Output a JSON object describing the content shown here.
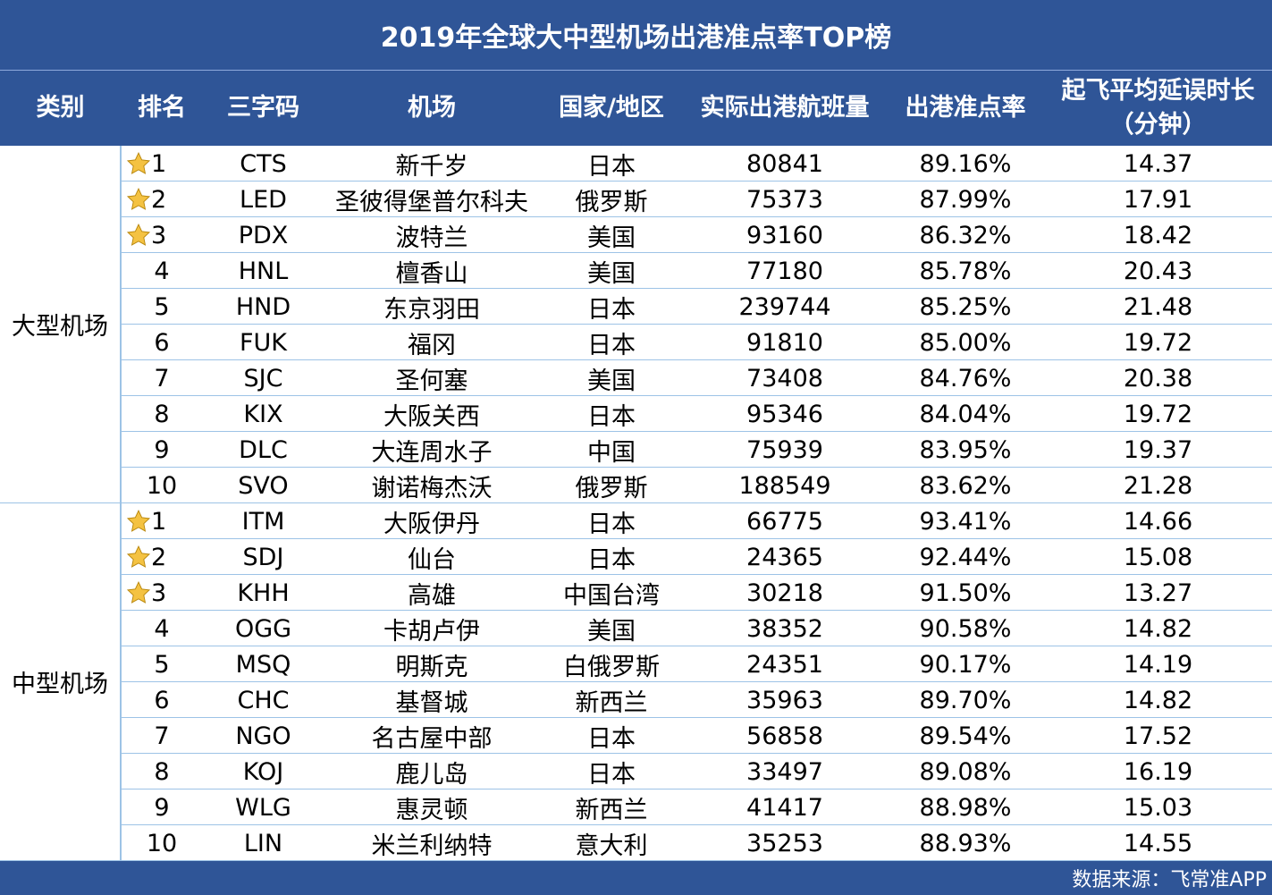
{
  "title": "2019年全球大中型机场出港准点率TOP榜",
  "headers": {
    "category": "类别",
    "rank": "排名",
    "code": "三字码",
    "airport": "机场",
    "region": "国家/地区",
    "flights": "实际出港航班量",
    "ontime": "出港准点率",
    "delay_line1": "起飞平均延误时长",
    "delay_line2": "（分钟）"
  },
  "groups": [
    {
      "category": "大型机场",
      "rows": [
        {
          "rank": "1",
          "star": true,
          "code": "CTS",
          "airport": "新千岁",
          "region": "日本",
          "flights": "80841",
          "ontime": "89.16%",
          "delay": "14.37"
        },
        {
          "rank": "2",
          "star": true,
          "code": "LED",
          "airport": "圣彼得堡普尔科夫",
          "region": "俄罗斯",
          "flights": "75373",
          "ontime": "87.99%",
          "delay": "17.91"
        },
        {
          "rank": "3",
          "star": true,
          "code": "PDX",
          "airport": "波特兰",
          "region": "美国",
          "flights": "93160",
          "ontime": "86.32%",
          "delay": "18.42"
        },
        {
          "rank": "4",
          "star": false,
          "code": "HNL",
          "airport": "檀香山",
          "region": "美国",
          "flights": "77180",
          "ontime": "85.78%",
          "delay": "20.43"
        },
        {
          "rank": "5",
          "star": false,
          "code": "HND",
          "airport": "东京羽田",
          "region": "日本",
          "flights": "239744",
          "ontime": "85.25%",
          "delay": "21.48"
        },
        {
          "rank": "6",
          "star": false,
          "code": "FUK",
          "airport": "福冈",
          "region": "日本",
          "flights": "91810",
          "ontime": "85.00%",
          "delay": "19.72"
        },
        {
          "rank": "7",
          "star": false,
          "code": "SJC",
          "airport": "圣何塞",
          "region": "美国",
          "flights": "73408",
          "ontime": "84.76%",
          "delay": "20.38"
        },
        {
          "rank": "8",
          "star": false,
          "code": "KIX",
          "airport": "大阪关西",
          "region": "日本",
          "flights": "95346",
          "ontime": "84.04%",
          "delay": "19.72"
        },
        {
          "rank": "9",
          "star": false,
          "code": "DLC",
          "airport": "大连周水子",
          "region": "中国",
          "flights": "75939",
          "ontime": "83.95%",
          "delay": "19.37"
        },
        {
          "rank": "10",
          "star": false,
          "code": "SVO",
          "airport": "谢诺梅杰沃",
          "region": "俄罗斯",
          "flights": "188549",
          "ontime": "83.62%",
          "delay": "21.28"
        }
      ]
    },
    {
      "category": "中型机场",
      "rows": [
        {
          "rank": "1",
          "star": true,
          "code": "ITM",
          "airport": "大阪伊丹",
          "region": "日本",
          "flights": "66775",
          "ontime": "93.41%",
          "delay": "14.66"
        },
        {
          "rank": "2",
          "star": true,
          "code": "SDJ",
          "airport": "仙台",
          "region": "日本",
          "flights": "24365",
          "ontime": "92.44%",
          "delay": "15.08"
        },
        {
          "rank": "3",
          "star": true,
          "code": "KHH",
          "airport": "高雄",
          "region": "中国台湾",
          "flights": "30218",
          "ontime": "91.50%",
          "delay": "13.27"
        },
        {
          "rank": "4",
          "star": false,
          "code": "OGG",
          "airport": "卡胡卢伊",
          "region": "美国",
          "flights": "38352",
          "ontime": "90.58%",
          "delay": "14.82"
        },
        {
          "rank": "5",
          "star": false,
          "code": "MSQ",
          "airport": "明斯克",
          "region": "白俄罗斯",
          "flights": "24351",
          "ontime": "90.17%",
          "delay": "14.19"
        },
        {
          "rank": "6",
          "star": false,
          "code": "CHC",
          "airport": "基督城",
          "region": "新西兰",
          "flights": "35963",
          "ontime": "89.70%",
          "delay": "14.82"
        },
        {
          "rank": "7",
          "star": false,
          "code": "NGO",
          "airport": "名古屋中部",
          "region": "日本",
          "flights": "56858",
          "ontime": "89.54%",
          "delay": "17.52"
        },
        {
          "rank": "8",
          "star": false,
          "code": "KOJ",
          "airport": "鹿儿岛",
          "region": "日本",
          "flights": "33497",
          "ontime": "89.08%",
          "delay": "16.19"
        },
        {
          "rank": "9",
          "star": false,
          "code": "WLG",
          "airport": "惠灵顿",
          "region": "新西兰",
          "flights": "41417",
          "ontime": "88.98%",
          "delay": "15.03"
        },
        {
          "rank": "10",
          "star": false,
          "code": "LIN",
          "airport": "米兰利纳特",
          "region": "意大利",
          "flights": "35253",
          "ontime": "88.93%",
          "delay": "14.55"
        }
      ]
    }
  ],
  "footer": "数据来源：飞常准APP",
  "colors": {
    "header_bg": "#2f5597",
    "header_text": "#ffffff",
    "grid_line": "#9dc3e6",
    "star": "#f4c242"
  }
}
